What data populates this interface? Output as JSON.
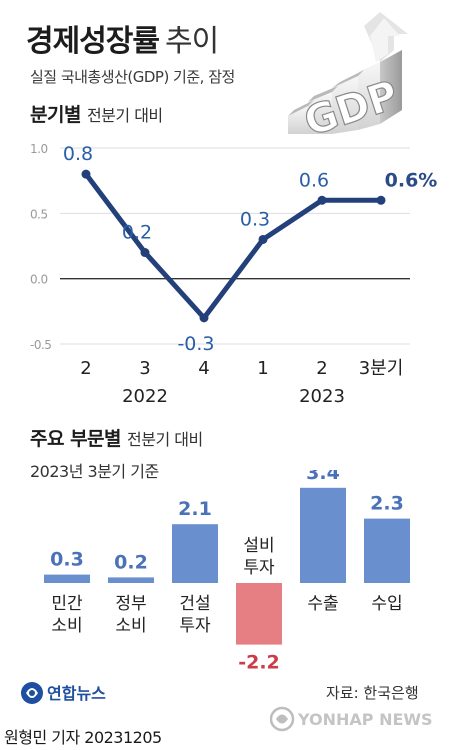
{
  "header": {
    "title": "경제성장률",
    "title_suffix": "추이",
    "subtitle": "실질 국내총생산(GDP) 기준, 잠정",
    "graphic_text": "GDP"
  },
  "section1": {
    "title": "분기별",
    "note": "전분기 대비"
  },
  "section2": {
    "title": "주요 부문별",
    "note": "전분기 대비",
    "basis": "2023년 3분기 기준"
  },
  "chart_data": [
    {
      "type": "line",
      "categories": [
        "2",
        "3",
        "4",
        "1",
        "2",
        "3분기"
      ],
      "year_labels": [
        {
          "label": "2022",
          "start": 0,
          "end": 2
        },
        {
          "label": "2023",
          "start": 3,
          "end": 5
        }
      ],
      "series": [
        {
          "values": [
            0.8,
            0.2,
            -0.3,
            0.3,
            0.6,
            0.6
          ]
        }
      ],
      "data_labels": [
        "0.8",
        "0.2",
        "-0.3",
        "0.3",
        "0.6",
        "0.6%"
      ],
      "yticks": [
        "1.0",
        "0.5",
        "0.0",
        "-0.5"
      ],
      "ytick_values": [
        1.0,
        0.5,
        0.0,
        -0.5
      ],
      "ylim": [
        -0.5,
        1.0
      ],
      "grid": true,
      "colors": {
        "line": "#23407a",
        "label": "#2a5fa8",
        "last_label": "#2b4a88"
      }
    },
    {
      "type": "bar",
      "categories": [
        "민간\n소비",
        "정부\n소비",
        "건설\n투자",
        "설비\n투자",
        "수출",
        "수입"
      ],
      "values": [
        0.3,
        0.2,
        2.1,
        -2.2,
        3.4,
        2.3
      ],
      "data_labels": [
        "0.3",
        "0.2",
        "2.1",
        "-2.2",
        "3.4",
        "2.3"
      ],
      "colors": {
        "positive": "#6a8fcf",
        "negative": "#e57f83",
        "positive_label": "#4a72b8",
        "negative_label": "#cc3b47"
      }
    }
  ],
  "footer": {
    "logo_text": "연합뉴스",
    "source": "자료: 한국은행",
    "watermark": "YONHAP NEWS",
    "credit": "원형민 기자  20231205"
  }
}
